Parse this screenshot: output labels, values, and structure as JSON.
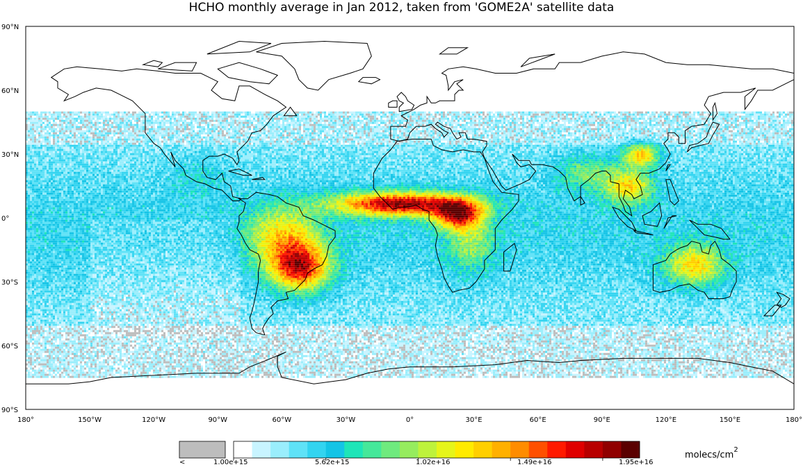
{
  "title": "HCHO monthly average in Jan 2012, taken from 'GOME2A' satellite data",
  "map": {
    "projection": "equirectangular",
    "lon_range": [
      -180,
      180
    ],
    "lat_range": [
      -90,
      90
    ],
    "lat_ticks": [
      "90°N",
      "60°N",
      "30°N",
      "0°",
      "30°S",
      "60°S",
      "90°S"
    ],
    "lon_ticks": [
      "180°",
      "150°W",
      "120°W",
      "90°W",
      "60°W",
      "30°W",
      "0°",
      "30°E",
      "60°E",
      "90°E",
      "120°E",
      "150°E",
      "180°"
    ],
    "data_coverage_lat": [
      -75,
      50
    ],
    "high_hcho_regions": [
      "West/Central Africa",
      "South America",
      "Northern Australia",
      "Southeast Asia"
    ]
  },
  "colorbar": {
    "below_label": "<",
    "labels": [
      "1.00e+15",
      "5.62e+15",
      "1.02e+16",
      "1.49e+16",
      "1.95e+16"
    ],
    "units_text": "molecs/cm",
    "units_power": "2",
    "below_color": "#bdbdbd",
    "colors": [
      "#ffffff",
      "#c8f4ff",
      "#9aeefc",
      "#5fe2f7",
      "#33d4f0",
      "#14c4e6",
      "#1ee5b8",
      "#45e89a",
      "#6fea7e",
      "#96ec5e",
      "#bef23c",
      "#e6f51a",
      "#ffeb00",
      "#ffcf00",
      "#ffb000",
      "#ff8c00",
      "#ff5000",
      "#ff1a00",
      "#e00000",
      "#b80000",
      "#900000",
      "#5a0000"
    ]
  }
}
